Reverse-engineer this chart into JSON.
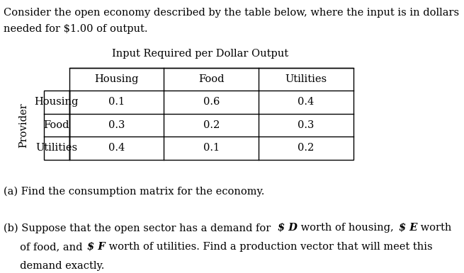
{
  "intro_line1": "Consider the open economy described by the table below, where the input is in dollars",
  "intro_line2": "needed for $1.00 of output.",
  "table_title": "Input Required per Dollar Output",
  "col_headers": [
    "Housing",
    "Food",
    "Utilities"
  ],
  "row_headers": [
    "Housing",
    "Food",
    "Utilities"
  ],
  "provider_label": "Provider",
  "table_data": [
    [
      "0.1",
      "0.6",
      "0.4"
    ],
    [
      "0.3",
      "0.2",
      "0.3"
    ],
    [
      "0.4",
      "0.1",
      "0.2"
    ]
  ],
  "part_a": "(a) Find the consumption matrix for the economy.",
  "part_b_line1": "(b) Suppose that the open sector has a demand for $ D worth of housing, $ E worth",
  "part_b_line2": "     of food, and $ F worth of utilities. Find a production vector that will meet this",
  "part_b_line3": "     demand exactly.",
  "bg_color": "#ffffff",
  "text_color": "#000000",
  "font_size": 10.5,
  "table_font_size": 10.5
}
